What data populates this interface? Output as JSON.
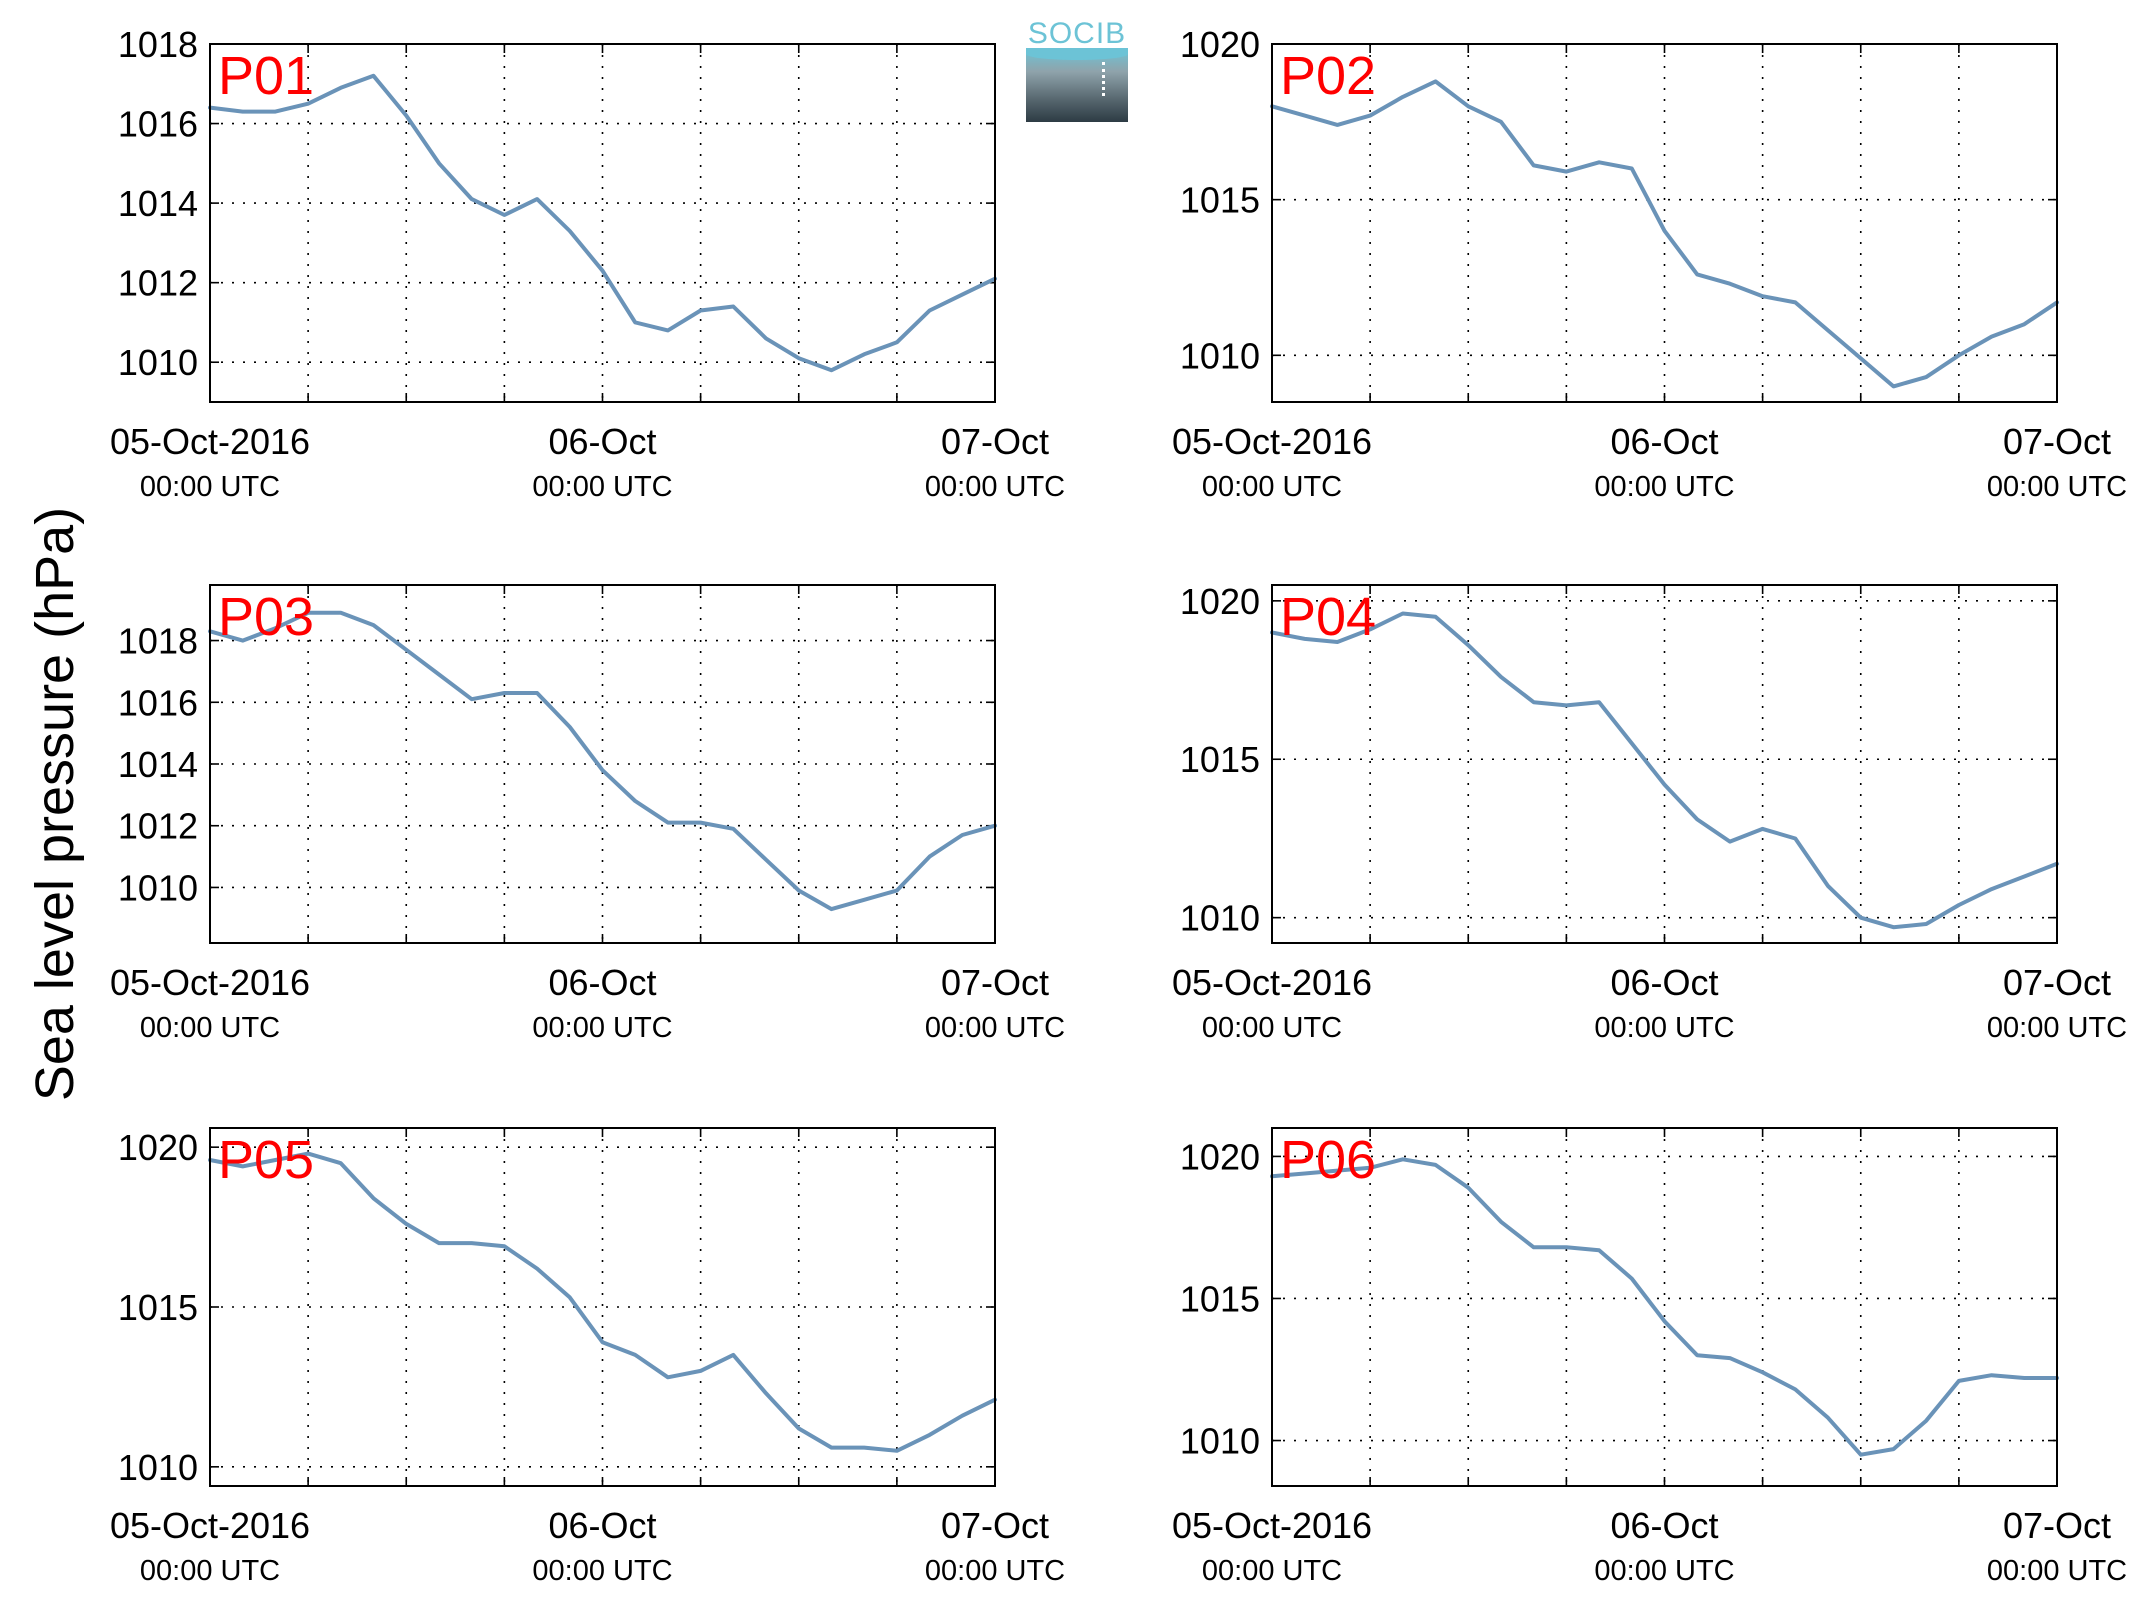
{
  "figure": {
    "ylabel": "Sea level pressure (hPa)",
    "logo_text": "SOCIB"
  },
  "colors": {
    "line": "#6a93b8",
    "station_label": "#ff0000",
    "axes": "#000000",
    "grid": "#000000"
  },
  "x_axis": {
    "start": "2016-10-05 00:00 UTC",
    "end": "2016-10-07 00:00 UTC",
    "tick_labels": [
      {
        "date": "2016-10-05 00:00",
        "line1": "05-Oct-2016",
        "line2": "00:00 UTC"
      },
      {
        "date": "2016-10-06 00:00",
        "line1": "06-Oct",
        "line2": "00:00 UTC"
      },
      {
        "date": "2016-10-07 00:00",
        "line1": "07-Oct",
        "line2": "00:00 UTC"
      }
    ],
    "minor_grid_hours": [
      6,
      12,
      18,
      24,
      30,
      36,
      42
    ]
  },
  "chart_data": [
    {
      "type": "line",
      "station": "P01",
      "ylim": [
        1009,
        1018
      ],
      "yticks": [
        "1010",
        "1012",
        "1014",
        "1016",
        "1018"
      ],
      "grid": true,
      "x_hours": [
        0,
        2,
        4,
        6,
        8,
        10,
        12,
        14,
        16,
        18,
        20,
        22,
        24,
        26,
        28,
        30,
        32,
        34,
        36,
        38,
        40,
        42,
        44,
        46,
        48
      ],
      "y": [
        1016.4,
        1016.3,
        1016.3,
        1016.5,
        1016.9,
        1017.2,
        1016.2,
        1015.0,
        1014.1,
        1013.7,
        1014.1,
        1013.3,
        1012.3,
        1011.0,
        1010.8,
        1011.3,
        1011.4,
        1010.6,
        1010.1,
        1009.8,
        1010.2,
        1010.5,
        1011.3,
        1011.7,
        1012.1
      ]
    },
    {
      "type": "line",
      "station": "P02",
      "ylim": [
        1008.5,
        1020
      ],
      "yticks": [
        "1010",
        "1015",
        "1020"
      ],
      "grid": true,
      "x_hours": [
        0,
        2,
        4,
        6,
        8,
        10,
        12,
        14,
        16,
        18,
        20,
        22,
        24,
        26,
        28,
        30,
        32,
        34,
        36,
        38,
        40,
        42,
        44,
        46,
        48
      ],
      "y": [
        1018.0,
        1017.7,
        1017.4,
        1017.7,
        1018.3,
        1018.8,
        1018.0,
        1017.5,
        1016.1,
        1015.9,
        1016.2,
        1016.0,
        1014.0,
        1012.6,
        1012.3,
        1011.9,
        1011.7,
        1010.8,
        1009.9,
        1009.0,
        1009.3,
        1010.0,
        1010.6,
        1011.0,
        1011.7
      ]
    },
    {
      "type": "line",
      "station": "P03",
      "ylim": [
        1008.2,
        1019.8
      ],
      "yticks": [
        "1010",
        "1012",
        "1014",
        "1016",
        "1018"
      ],
      "grid": true,
      "x_hours": [
        0,
        2,
        4,
        6,
        8,
        10,
        12,
        14,
        16,
        18,
        20,
        22,
        24,
        26,
        28,
        30,
        32,
        34,
        36,
        38,
        40,
        42,
        44,
        46,
        48
      ],
      "y": [
        1018.3,
        1018.0,
        1018.4,
        1018.9,
        1018.9,
        1018.5,
        1017.7,
        1016.9,
        1016.1,
        1016.3,
        1016.3,
        1015.2,
        1013.8,
        1012.8,
        1012.1,
        1012.1,
        1011.9,
        1010.9,
        1009.9,
        1009.3,
        1009.6,
        1009.9,
        1011.0,
        1011.7,
        1012.0
      ]
    },
    {
      "type": "line",
      "station": "P04",
      "ylim": [
        1009.2,
        1020.5
      ],
      "yticks": [
        "1010",
        "1015",
        "1020"
      ],
      "grid": true,
      "x_hours": [
        0,
        2,
        4,
        6,
        8,
        10,
        12,
        14,
        16,
        18,
        20,
        22,
        24,
        26,
        28,
        30,
        32,
        34,
        36,
        38,
        40,
        42,
        44,
        46,
        48
      ],
      "y": [
        1019.0,
        1018.8,
        1018.7,
        1019.1,
        1019.6,
        1019.5,
        1018.6,
        1017.6,
        1016.8,
        1016.7,
        1016.8,
        1015.5,
        1014.2,
        1013.1,
        1012.4,
        1012.8,
        1012.5,
        1011.0,
        1010.0,
        1009.7,
        1009.8,
        1010.4,
        1010.9,
        1011.3,
        1011.7
      ]
    },
    {
      "type": "line",
      "station": "P05",
      "ylim": [
        1009.4,
        1020.6
      ],
      "yticks": [
        "1010",
        "1015",
        "1020"
      ],
      "grid": true,
      "x_hours": [
        0,
        2,
        4,
        6,
        8,
        10,
        12,
        14,
        16,
        18,
        20,
        22,
        24,
        26,
        28,
        30,
        32,
        34,
        36,
        38,
        40,
        42,
        44,
        46,
        48
      ],
      "y": [
        1019.6,
        1019.4,
        1019.6,
        1019.8,
        1019.5,
        1018.4,
        1017.6,
        1017.0,
        1017.0,
        1016.9,
        1016.2,
        1015.3,
        1013.9,
        1013.5,
        1012.8,
        1013.0,
        1013.5,
        1012.3,
        1011.2,
        1010.6,
        1010.6,
        1010.5,
        1011.0,
        1011.6,
        1012.1
      ]
    },
    {
      "type": "line",
      "station": "P06",
      "ylim": [
        1008.4,
        1021
      ],
      "yticks": [
        "1010",
        "1015",
        "1020"
      ],
      "grid": true,
      "x_hours": [
        0,
        2,
        4,
        6,
        8,
        10,
        12,
        14,
        16,
        18,
        20,
        22,
        24,
        26,
        28,
        30,
        32,
        34,
        36,
        38,
        40,
        42,
        44,
        46,
        48
      ],
      "y": [
        1019.3,
        1019.4,
        1019.5,
        1019.6,
        1019.9,
        1019.7,
        1018.9,
        1017.7,
        1016.8,
        1016.8,
        1016.7,
        1015.7,
        1014.2,
        1013.0,
        1012.9,
        1012.4,
        1011.8,
        1010.8,
        1009.5,
        1009.7,
        1010.7,
        1012.1,
        1012.3,
        1012.2,
        1012.2
      ]
    }
  ]
}
